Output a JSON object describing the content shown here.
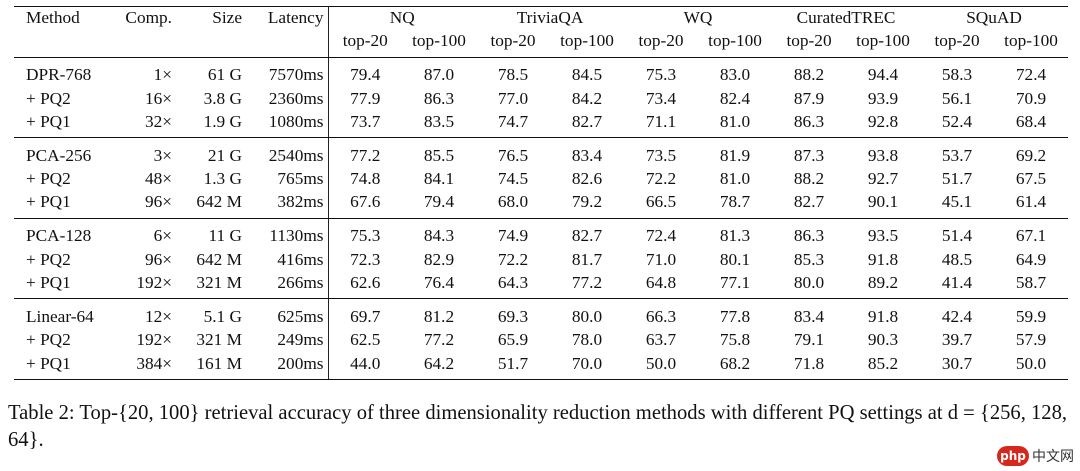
{
  "table": {
    "headers": {
      "method": "Method",
      "comp": "Comp.",
      "size": "Size",
      "latency": "Latency",
      "datasets": [
        "NQ",
        "TriviaQA",
        "WQ",
        "CuratedTREC",
        "SQuAD"
      ],
      "sub": [
        "top-20",
        "top-100"
      ]
    },
    "groups": [
      {
        "rows": [
          {
            "method": "DPR-768",
            "comp": "1×",
            "size": "61 G",
            "latency": "7570ms",
            "values": [
              "79.4",
              "87.0",
              "78.5",
              "84.5",
              "75.3",
              "83.0",
              "88.2",
              "94.4",
              "58.3",
              "72.4"
            ]
          },
          {
            "method": "+ PQ2",
            "comp": "16×",
            "size": "3.8 G",
            "latency": "2360ms",
            "values": [
              "77.9",
              "86.3",
              "77.0",
              "84.2",
              "73.4",
              "82.4",
              "87.9",
              "93.9",
              "56.1",
              "70.9"
            ]
          },
          {
            "method": "+ PQ1",
            "comp": "32×",
            "size": "1.9 G",
            "latency": "1080ms",
            "values": [
              "73.7",
              "83.5",
              "74.7",
              "82.7",
              "71.1",
              "81.0",
              "86.3",
              "92.8",
              "52.4",
              "68.4"
            ]
          }
        ]
      },
      {
        "rows": [
          {
            "method": "PCA-256",
            "comp": "3×",
            "size": "21 G",
            "latency": "2540ms",
            "values": [
              "77.2",
              "85.5",
              "76.5",
              "83.4",
              "73.5",
              "81.9",
              "87.3",
              "93.8",
              "53.7",
              "69.2"
            ]
          },
          {
            "method": "+ PQ2",
            "comp": "48×",
            "size": "1.3 G",
            "latency": "765ms",
            "values": [
              "74.8",
              "84.1",
              "74.5",
              "82.6",
              "72.2",
              "81.0",
              "88.2",
              "92.7",
              "51.7",
              "67.5"
            ]
          },
          {
            "method": "+ PQ1",
            "comp": "96×",
            "size": "642 M",
            "latency": "382ms",
            "values": [
              "67.6",
              "79.4",
              "68.0",
              "79.2",
              "66.5",
              "78.7",
              "82.7",
              "90.1",
              "45.1",
              "61.4"
            ]
          }
        ]
      },
      {
        "rows": [
          {
            "method": "PCA-128",
            "comp": "6×",
            "size": "11 G",
            "latency": "1130ms",
            "values": [
              "75.3",
              "84.3",
              "74.9",
              "82.7",
              "72.4",
              "81.3",
              "86.3",
              "93.5",
              "51.4",
              "67.1"
            ]
          },
          {
            "method": "+ PQ2",
            "comp": "96×",
            "size": "642 M",
            "latency": "416ms",
            "values": [
              "72.3",
              "82.9",
              "72.2",
              "81.7",
              "71.0",
              "80.1",
              "85.3",
              "91.8",
              "48.5",
              "64.9"
            ]
          },
          {
            "method": "+ PQ1",
            "comp": "192×",
            "size": "321 M",
            "latency": "266ms",
            "values": [
              "62.6",
              "76.4",
              "64.3",
              "77.2",
              "64.8",
              "77.1",
              "80.0",
              "89.2",
              "41.4",
              "58.7"
            ]
          }
        ]
      },
      {
        "rows": [
          {
            "method": "Linear-64",
            "comp": "12×",
            "size": "5.1 G",
            "latency": "625ms",
            "values": [
              "69.7",
              "81.2",
              "69.3",
              "80.0",
              "66.3",
              "77.8",
              "83.4",
              "91.8",
              "42.4",
              "59.9"
            ]
          },
          {
            "method": "+ PQ2",
            "comp": "192×",
            "size": "321 M",
            "latency": "249ms",
            "values": [
              "62.5",
              "77.2",
              "65.9",
              "78.0",
              "63.7",
              "75.8",
              "79.1",
              "90.3",
              "39.7",
              "57.9"
            ]
          },
          {
            "method": "+ PQ1",
            "comp": "384×",
            "size": "161 M",
            "latency": "200ms",
            "values": [
              "44.0",
              "64.2",
              "51.7",
              "70.0",
              "50.0",
              "68.2",
              "71.8",
              "85.2",
              "30.7",
              "50.0"
            ]
          }
        ]
      }
    ]
  },
  "caption": "Table 2: Top-{20, 100} retrieval accuracy of three dimensionality reduction methods with different PQ settings at d = {256, 128, 64}.",
  "watermark": {
    "logo": "php",
    "text": "中文网"
  }
}
